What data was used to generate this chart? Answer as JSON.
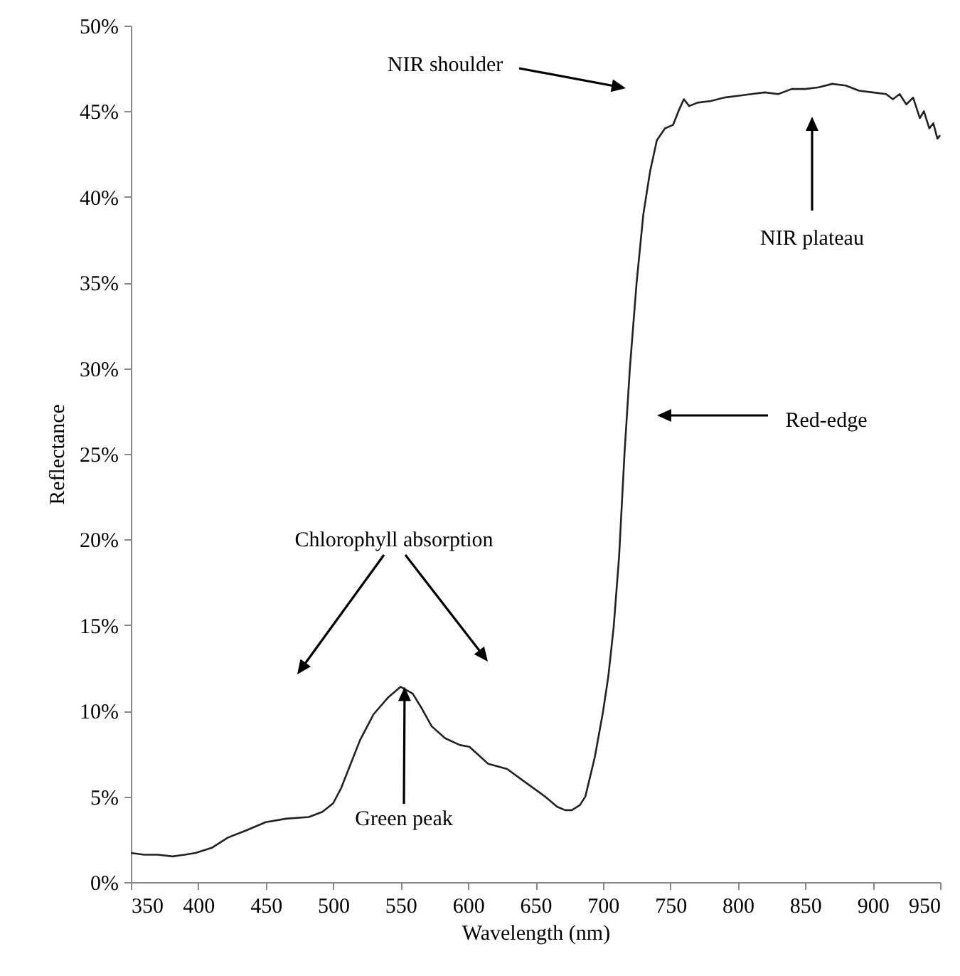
{
  "chart_data": {
    "type": "line",
    "xlabel": "Wavelength (nm)",
    "ylabel": "Reflectance",
    "x": [
      350,
      360,
      370,
      381,
      390,
      398,
      410,
      422,
      435,
      450,
      465,
      482,
      492,
      500,
      506,
      513,
      520,
      530,
      541,
      550,
      559,
      566,
      573,
      583,
      594,
      601,
      608,
      615,
      629,
      643,
      657,
      666,
      672,
      677,
      683,
      687,
      694,
      700,
      704,
      708,
      712,
      716,
      720,
      725,
      730,
      735,
      740,
      746,
      752,
      756,
      760,
      764,
      770,
      780,
      790,
      800,
      810,
      820,
      830,
      840,
      850,
      860,
      870,
      880,
      890,
      900,
      910,
      915,
      920,
      925,
      930,
      935,
      938,
      942,
      945,
      948,
      950
    ],
    "series": [
      {
        "color": "#222222",
        "values": [
          1.7,
          1.6,
          1.6,
          1.5,
          1.6,
          1.7,
          2.0,
          2.6,
          3.0,
          3.5,
          3.7,
          3.8,
          4.1,
          4.6,
          5.5,
          6.9,
          8.3,
          9.8,
          10.8,
          11.4,
          11.0,
          10.1,
          9.1,
          8.4,
          8.0,
          7.9,
          7.4,
          6.9,
          6.6,
          5.8,
          5.0,
          4.4,
          4.2,
          4.2,
          4.5,
          5.0,
          7.3,
          9.9,
          12.0,
          14.9,
          19,
          25,
          30,
          35,
          39,
          41.5,
          43.3,
          44,
          44.2,
          45.0,
          45.7,
          45.3,
          45.5,
          45.6,
          45.8,
          45.9,
          46.0,
          46.1,
          46.0,
          46.3,
          46.3,
          46.4,
          46.6,
          46.5,
          46.2,
          46.1,
          46.0,
          45.7,
          46.0,
          45.4,
          45.8,
          44.6,
          45.0,
          44.0,
          44.3,
          43.4,
          43.6
        ]
      }
    ],
    "xlim": [
      350,
      950
    ],
    "xticks": [
      350,
      400,
      450,
      500,
      550,
      600,
      650,
      700,
      750,
      800,
      850,
      900,
      950
    ],
    "ylim": [
      0,
      50
    ],
    "yticks": [
      {
        "value": 0,
        "label": "0%"
      },
      {
        "value": 5,
        "label": "5%"
      },
      {
        "value": 10,
        "label": "10%"
      },
      {
        "value": 15,
        "label": "15%"
      },
      {
        "value": 20,
        "label": "20%"
      },
      {
        "value": 25,
        "label": "25%"
      },
      {
        "value": 30,
        "label": "30%"
      },
      {
        "value": 35,
        "label": "35%"
      },
      {
        "value": 40,
        "label": "40%"
      },
      {
        "value": 45,
        "label": "45%"
      },
      {
        "value": 50,
        "label": "50%"
      }
    ],
    "grid": false,
    "marker": "none",
    "line_style": "solid",
    "annotations": [
      "NIR shoulder",
      "NIR plateau",
      "Red-edge",
      "Chlorophyll absorption",
      {
        "text": "Green peak",
        "x": 553,
        "y": 11.4
      }
    ]
  }
}
